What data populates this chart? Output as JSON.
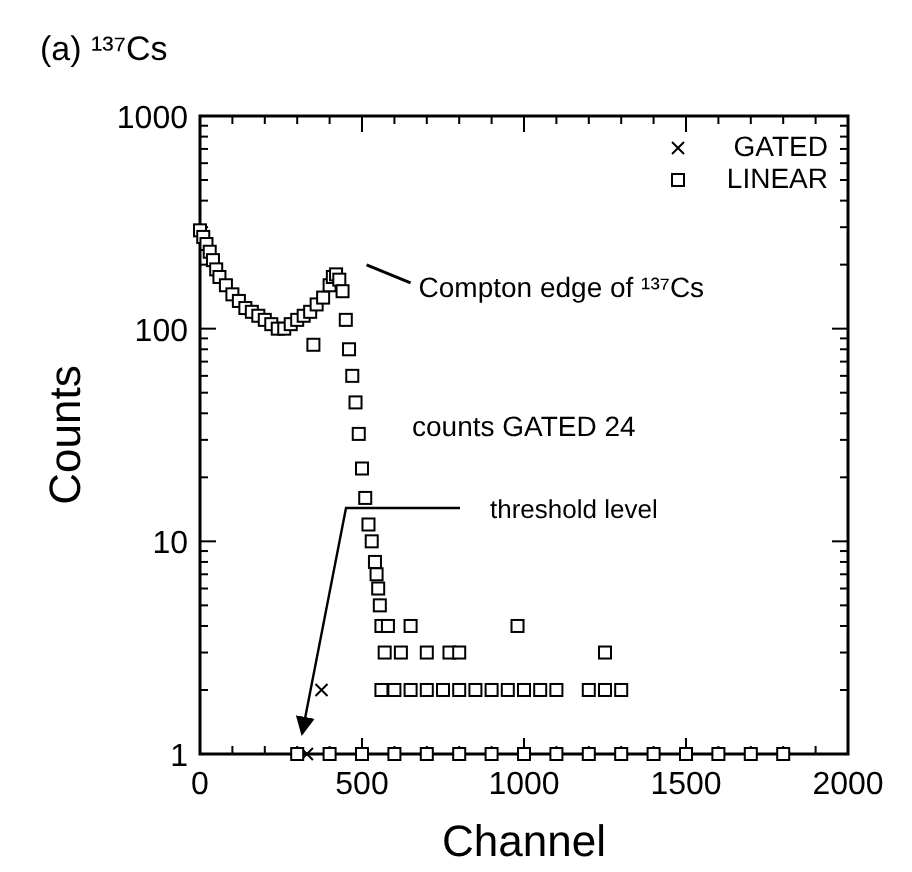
{
  "chart_data": {
    "type": "scatter",
    "title": "(a) ¹³⁷Cs",
    "xlabel": "Channel",
    "ylabel": "Counts",
    "log": "y",
    "legend": "top right",
    "grid": false,
    "xlim": [
      0,
      2000
    ],
    "ylim": [
      1,
      1000
    ],
    "xticks": [
      0,
      {
        "value": 100,
        "label": null
      },
      {
        "value": 200,
        "label": null
      },
      {
        "value": 300,
        "label": null
      },
      {
        "value": 400,
        "label": null
      },
      500,
      {
        "value": 600,
        "label": null
      },
      {
        "value": 700,
        "label": null
      },
      {
        "value": 800,
        "label": null
      },
      {
        "value": 900,
        "label": null
      },
      1000,
      {
        "value": 1100,
        "label": null
      },
      {
        "value": 1200,
        "label": null
      },
      {
        "value": 1300,
        "label": null
      },
      {
        "value": 1400,
        "label": null
      },
      1500,
      {
        "value": 1600,
        "label": null
      },
      {
        "value": 1700,
        "label": null
      },
      {
        "value": 1800,
        "label": null
      },
      {
        "value": 1900,
        "label": null
      },
      2000
    ],
    "yticks": [
      1,
      {
        "value": 2,
        "label": null
      },
      {
        "value": 3,
        "label": null
      },
      {
        "value": 4,
        "label": null
      },
      {
        "value": 5,
        "label": null
      },
      {
        "value": 6,
        "label": null
      },
      {
        "value": 7,
        "label": null
      },
      {
        "value": 8,
        "label": null
      },
      {
        "value": 9,
        "label": null
      },
      10,
      {
        "value": 20,
        "label": null
      },
      {
        "value": 30,
        "label": null
      },
      {
        "value": 40,
        "label": null
      },
      {
        "value": 50,
        "label": null
      },
      {
        "value": 60,
        "label": null
      },
      {
        "value": 70,
        "label": null
      },
      {
        "value": 80,
        "label": null
      },
      {
        "value": 90,
        "label": null
      },
      100,
      {
        "value": 200,
        "label": null
      },
      {
        "value": 300,
        "label": null
      },
      {
        "value": 400,
        "label": null
      },
      {
        "value": 500,
        "label": null
      },
      {
        "value": 600,
        "label": null
      },
      {
        "value": 700,
        "label": null
      },
      {
        "value": 800,
        "label": null
      },
      {
        "value": 900,
        "label": null
      },
      1000
    ],
    "series": [
      {
        "name": "GATED",
        "color": "#000000",
        "marker": "cross",
        "x": [
          375,
          330
        ],
        "values": [
          2,
          1
        ]
      },
      {
        "name": "LINEAR",
        "color": "#000000",
        "marker": "square",
        "x": [
          0,
          10,
          20,
          30,
          40,
          50,
          60,
          80,
          100,
          120,
          140,
          160,
          180,
          200,
          220,
          240,
          260,
          280,
          300,
          320,
          340,
          350,
          360,
          380,
          400,
          410,
          420,
          430,
          440,
          450,
          460,
          470,
          480,
          490,
          500,
          510,
          520,
          530,
          540,
          545,
          550,
          555,
          560,
          580,
          650,
          980,
          570,
          620,
          700,
          770,
          800,
          1250,
          560,
          600,
          650,
          700,
          750,
          800,
          850,
          900,
          950,
          1000,
          1050,
          1100,
          1200,
          1250,
          1300,
          300,
          400,
          500,
          600,
          700,
          800,
          900,
          1000,
          1100,
          1200,
          1300,
          1400,
          1500,
          1600,
          1700,
          1800
        ],
        "values": [
          290,
          270,
          250,
          230,
          210,
          190,
          175,
          160,
          145,
          135,
          125,
          120,
          115,
          110,
          105,
          100,
          100,
          105,
          110,
          115,
          120,
          84,
          130,
          140,
          160,
          175,
          180,
          170,
          150,
          110,
          80,
          60,
          45,
          32,
          22,
          16,
          12,
          10,
          8,
          7,
          6,
          5,
          4,
          4,
          4,
          4,
          3,
          3,
          3,
          3,
          3,
          3,
          2,
          2,
          2,
          2,
          2,
          2,
          2,
          2,
          2,
          2,
          2,
          2,
          2,
          2,
          2,
          1,
          1,
          1,
          1,
          1,
          1,
          1,
          1,
          1,
          1,
          1,
          1,
          1,
          1,
          1,
          1
        ]
      }
    ],
    "annotations": [
      {
        "text": "Compton edge of ¹³⁷Cs",
        "x": 440,
        "y": 175
      },
      "counts GATED 24",
      "threshold level"
    ]
  }
}
